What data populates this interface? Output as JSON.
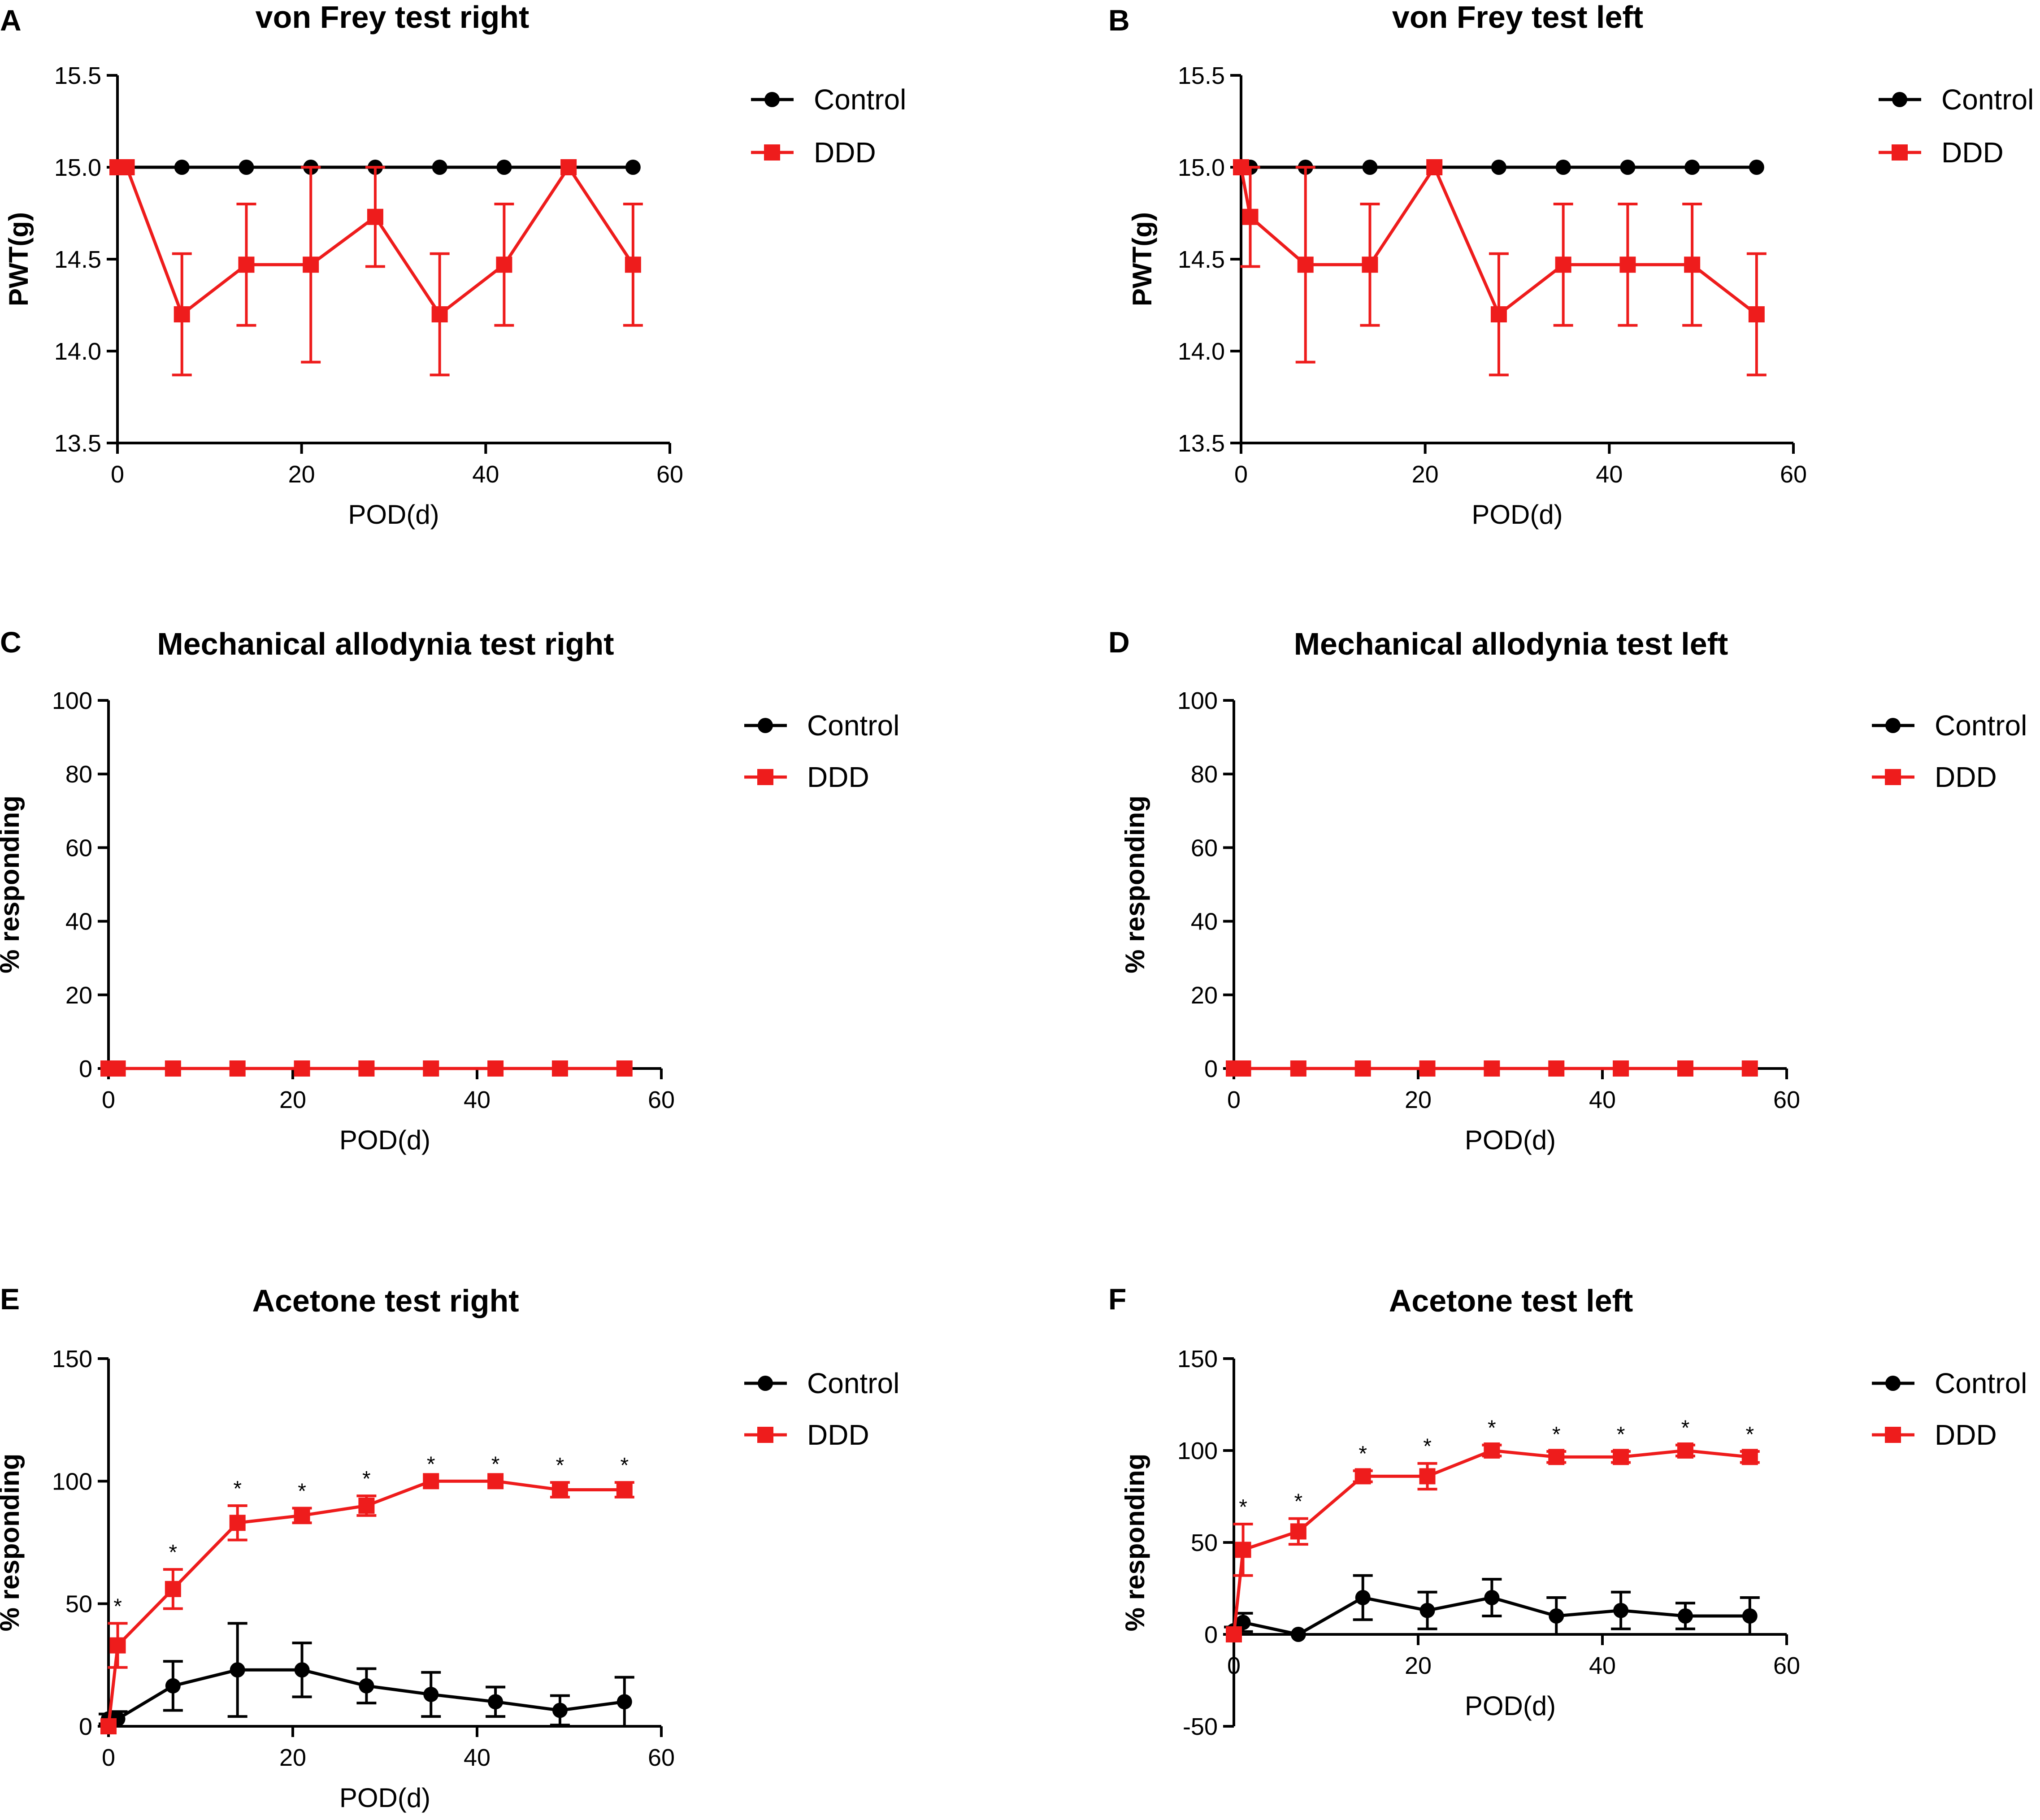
{
  "colors": {
    "control": "#000000",
    "ddd": "#ee1c1c",
    "axis": "#000000",
    "background": "#ffffff"
  },
  "icons": {
    "control_marker": "black-circle-icon",
    "ddd_marker": "red-square-icon"
  },
  "chart_data": [
    {
      "panel": "A",
      "type": "line",
      "title": "von Frey test right",
      "xlabel": "POD(d)",
      "ylabel": "PWT(g)",
      "xlim": [
        0,
        60
      ],
      "ylim": [
        13.5,
        15.5
      ],
      "xticks": [
        0,
        20,
        40,
        60
      ],
      "yticks": [
        13.5,
        14.0,
        14.5,
        15.0,
        15.5
      ],
      "ytick_labels": [
        "13.5",
        "14.0",
        "14.5",
        "15.0",
        "15.5"
      ],
      "legend_position": "top-right",
      "series": [
        {
          "name": "Control",
          "x": [
            0,
            1,
            7,
            14,
            21,
            28,
            35,
            42,
            49,
            56
          ],
          "y": [
            15,
            15,
            15,
            15,
            15,
            15,
            15,
            15,
            15,
            15
          ]
        },
        {
          "name": "DDD",
          "x": [
            0,
            1,
            7,
            14,
            21,
            28,
            35,
            42,
            49,
            56
          ],
          "y": [
            15,
            15,
            14.2,
            14.47,
            14.47,
            14.73,
            14.2,
            14.47,
            15,
            14.47
          ],
          "err": [
            0,
            0,
            0.33,
            0.33,
            0.53,
            0.27,
            0.33,
            0.33,
            0,
            0.33
          ]
        }
      ]
    },
    {
      "panel": "B",
      "type": "line",
      "title": "von Frey test left",
      "xlabel": "POD(d)",
      "ylabel": "PWT(g)",
      "xlim": [
        0,
        60
      ],
      "ylim": [
        13.5,
        15.5
      ],
      "xticks": [
        0,
        20,
        40,
        60
      ],
      "yticks": [
        13.5,
        14.0,
        14.5,
        15.0,
        15.5
      ],
      "ytick_labels": [
        "13.5",
        "14.0",
        "14.5",
        "15.0",
        "15.5"
      ],
      "legend_position": "top-right",
      "series": [
        {
          "name": "Control",
          "x": [
            0,
            1,
            7,
            14,
            21,
            28,
            35,
            42,
            49,
            56
          ],
          "y": [
            15,
            15,
            15,
            15,
            15,
            15,
            15,
            15,
            15,
            15
          ]
        },
        {
          "name": "DDD",
          "x": [
            0,
            1,
            7,
            14,
            21,
            28,
            35,
            42,
            49,
            56
          ],
          "y": [
            15,
            14.73,
            14.47,
            14.47,
            15,
            14.2,
            14.47,
            14.47,
            14.47,
            14.2
          ],
          "err": [
            0,
            0.27,
            0.53,
            0.33,
            0,
            0.33,
            0.33,
            0.33,
            0.33,
            0.33
          ]
        }
      ]
    },
    {
      "panel": "C",
      "type": "line",
      "title": "Mechanical allodynia test right",
      "xlabel": "POD(d)",
      "ylabel": "% responding",
      "xlim": [
        0,
        60
      ],
      "ylim": [
        0,
        100
      ],
      "xticks": [
        0,
        20,
        40,
        60
      ],
      "yticks": [
        0,
        20,
        40,
        60,
        80,
        100
      ],
      "ytick_labels": [
        "0",
        "20",
        "40",
        "60",
        "80",
        "100"
      ],
      "legend_position": "top-right",
      "series": [
        {
          "name": "Control",
          "x": [
            0,
            1,
            7,
            14,
            21,
            28,
            35,
            42,
            49,
            56
          ],
          "y": [
            0,
            0,
            0,
            0,
            0,
            0,
            0,
            0,
            0,
            0
          ]
        },
        {
          "name": "DDD",
          "x": [
            0,
            1,
            7,
            14,
            21,
            28,
            35,
            42,
            49,
            56
          ],
          "y": [
            0,
            0,
            0,
            0,
            0,
            0,
            0,
            0,
            0,
            0
          ]
        }
      ]
    },
    {
      "panel": "D",
      "type": "line",
      "title": "Mechanical allodynia test left",
      "xlabel": "POD(d)",
      "ylabel": "% responding",
      "xlim": [
        0,
        60
      ],
      "ylim": [
        0,
        100
      ],
      "xticks": [
        0,
        20,
        40,
        60
      ],
      "yticks": [
        0,
        20,
        40,
        60,
        80,
        100
      ],
      "ytick_labels": [
        "0",
        "20",
        "40",
        "60",
        "80",
        "100"
      ],
      "legend_position": "top-right",
      "series": [
        {
          "name": "Control",
          "x": [
            0,
            1,
            7,
            14,
            21,
            28,
            35,
            42,
            49,
            56
          ],
          "y": [
            0,
            0,
            0,
            0,
            0,
            0,
            0,
            0,
            0,
            0
          ]
        },
        {
          "name": "DDD",
          "x": [
            0,
            1,
            7,
            14,
            21,
            28,
            35,
            42,
            49,
            56
          ],
          "y": [
            0,
            0,
            0,
            0,
            0,
            0,
            0,
            0,
            0,
            0
          ]
        }
      ]
    },
    {
      "panel": "E",
      "type": "line",
      "title": "Acetone test right",
      "xlabel": "POD(d)",
      "ylabel": "% responding",
      "xlim": [
        0,
        60
      ],
      "ylim": [
        0,
        150
      ],
      "xticks": [
        0,
        20,
        40,
        60
      ],
      "yticks": [
        0,
        50,
        100,
        150
      ],
      "ytick_labels": [
        "0",
        "50",
        "100",
        "150"
      ],
      "legend_position": "top-right",
      "annotations": {
        "significance_marker": "*",
        "x": [
          1,
          7,
          14,
          21,
          28,
          35,
          42,
          49,
          56
        ]
      },
      "series": [
        {
          "name": "Control",
          "x": [
            0,
            1,
            7,
            14,
            21,
            28,
            35,
            42,
            49,
            56
          ],
          "y": [
            3,
            3,
            16.5,
            23,
            23,
            16.5,
            13,
            10,
            6.5,
            10
          ],
          "err": [
            2,
            3,
            10,
            19,
            11,
            7,
            9,
            6,
            6,
            10
          ]
        },
        {
          "name": "DDD",
          "x": [
            0,
            1,
            7,
            14,
            21,
            28,
            35,
            42,
            49,
            56
          ],
          "y": [
            0,
            33,
            56,
            83,
            86,
            90,
            100,
            100,
            96.5,
            96.5
          ],
          "err": [
            0,
            9,
            8,
            7,
            3,
            4,
            0,
            0,
            3,
            3
          ]
        }
      ]
    },
    {
      "panel": "F",
      "type": "line",
      "title": "Acetone test left",
      "xlabel": "POD(d)",
      "ylabel": "% responding",
      "xlim": [
        0,
        60
      ],
      "ylim": [
        -50,
        150
      ],
      "xticks": [
        0,
        20,
        40,
        60
      ],
      "yticks": [
        -50,
        0,
        50,
        100,
        150
      ],
      "ytick_labels": [
        "-50",
        "0",
        "50",
        "100",
        "150"
      ],
      "legend_position": "top-right",
      "annotations": {
        "significance_marker": "*",
        "x": [
          1,
          7,
          14,
          21,
          28,
          35,
          42,
          49,
          56
        ]
      },
      "series": [
        {
          "name": "Control",
          "x": [
            0,
            1,
            7,
            14,
            21,
            28,
            35,
            42,
            49,
            56
          ],
          "y": [
            2,
            6.5,
            0,
            20,
            13,
            20,
            10,
            13,
            10,
            10
          ],
          "err": [
            2,
            5,
            0,
            12,
            10,
            10,
            10,
            10,
            7,
            10
          ]
        },
        {
          "name": "DDD",
          "x": [
            0,
            1,
            7,
            14,
            21,
            28,
            35,
            42,
            49,
            56
          ],
          "y": [
            0,
            46,
            56,
            86,
            86,
            100,
            96.5,
            96.5,
            100,
            96.5
          ],
          "err": [
            0,
            14,
            7,
            3,
            7,
            3,
            3,
            3,
            3,
            3
          ]
        }
      ]
    }
  ]
}
